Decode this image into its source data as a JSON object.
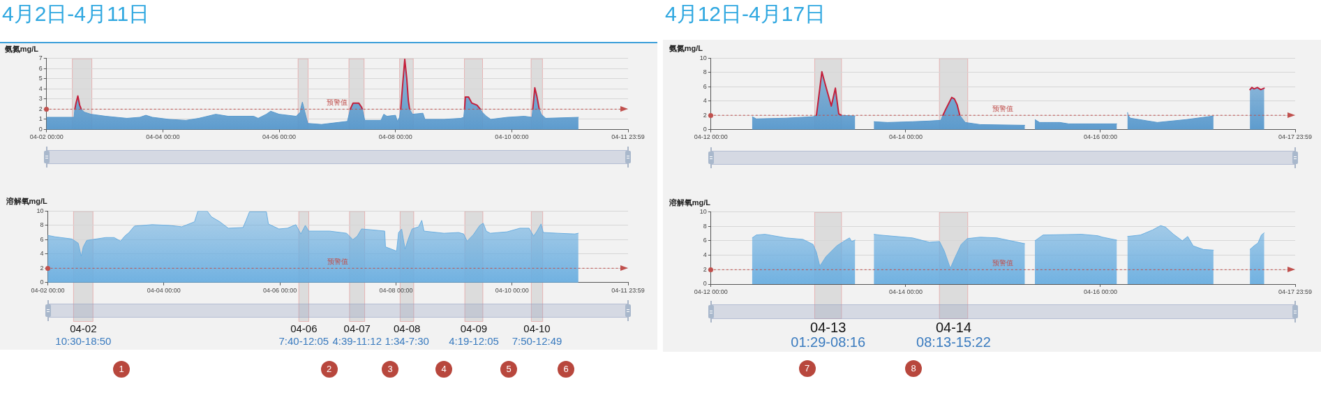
{
  "chart_data": [
    {
      "type": "area",
      "title": "4月2日-4月11日",
      "ylabel": "氨氮mg/L",
      "grid": "y",
      "marker": "none",
      "xlim": [
        "--04-02T00:00",
        "--04-11T23:59"
      ],
      "xticks": [
        {
          "value": "--04-02T00:00",
          "label": "04-02 00:00"
        },
        {
          "value": "--04-04T00:00",
          "label": "04-04 00:00"
        },
        {
          "value": "--04-06T00:00",
          "label": "04-06 00:00"
        },
        {
          "value": "--04-08T00:00",
          "label": "04-08 00:00"
        },
        {
          "value": "--04-10T00:00",
          "label": "04-10 00:00"
        },
        {
          "value": "--04-11T23:59",
          "label": "04-11 23:59"
        }
      ],
      "ylim": [
        0,
        7
      ],
      "yticks": [
        0,
        1,
        2,
        3,
        4,
        5,
        6,
        7
      ],
      "series": [
        {
          "color": "#5597cc",
          "x": [
            "--04-02T00:00",
            "--04-02T11:20",
            "--04-02T11:40",
            "--04-02T12:10",
            "--04-02T12:55",
            "--04-02T13:40",
            "--04-02T14:20",
            "--04-02T15:40",
            "--04-02T18:20",
            "--04-03T00:30",
            "--04-03T09:10",
            "--04-03T14:30",
            "--04-03T17:00",
            "--04-03T19:40",
            "--04-04T02:30",
            "--04-04T09:30",
            "--04-04T14:50",
            "--04-04T21:50",
            "--04-05T03:00",
            "--04-05T13:30",
            "--04-05T15:20",
            "--04-05T18:40",
            "--04-05T20:30",
            "--04-06T00:00",
            "--04-06T07:00",
            "--04-06T08:40",
            "--04-06T08:50",
            "--04-06T09:35",
            "--04-06T10:20",
            "--04-06T10:30",
            "--04-06T11:50",
            "--04-06T17:30",
            "--04-07T00:30",
            "--04-07T04:10",
            "--04-07T05:20",
            "--04-07T06:30",
            "--04-07T08:50",
            "--04-07T10:00",
            "--04-07T10:20",
            "--04-07T11:20",
            "--04-07T18:00",
            "--04-07T19:10",
            "--04-07T20:30",
            "--04-08T00:00",
            "--04-08T00:50",
            "--04-08T01:40",
            "--04-08T02:10",
            "--04-08T03:00",
            "--04-08T03:50",
            "--04-08T04:40",
            "--04-08T05:20",
            "--04-08T05:50",
            "--04-08T07:00",
            "--04-08T11:20",
            "--04-08T12:10",
            "--04-08T20:00",
            "--04-09T03:00",
            "--04-09T04:10",
            "--04-09T04:30",
            "--04-09T04:50",
            "--04-09T06:10",
            "--04-09T07:30",
            "--04-09T09:40",
            "--04-09T11:00",
            "--04-09T11:50",
            "--04-09T13:30",
            "--04-09T15:20",
            "--04-09T22:10",
            "--04-10T05:10",
            "--04-10T08:20",
            "--04-10T08:40",
            "--04-10T09:30",
            "--04-10T10:20",
            "--04-10T11:20",
            "--04-10T12:10",
            "--04-10T14:00",
            "--04-11T03:30"
          ],
          "values": [
            1.2,
            1.2,
            2.0,
            2.6,
            3.3,
            2.4,
            2.0,
            1.7,
            1.5,
            1.3,
            1.1,
            1.2,
            1.4,
            1.2,
            1.0,
            0.9,
            1.1,
            1.5,
            1.3,
            1.3,
            1.1,
            1.5,
            1.8,
            1.5,
            1.3,
            1.7,
            2.0,
            2.7,
            2.0,
            1.8,
            0.6,
            0.5,
            0.7,
            0.8,
            2.0,
            2.6,
            2.6,
            2.2,
            2.0,
            0.9,
            0.9,
            1.5,
            1.3,
            1.4,
            0.8,
            1.2,
            2.0,
            4.5,
            6.9,
            5.0,
            2.8,
            2.0,
            1.5,
            1.6,
            1.0,
            1.0,
            1.1,
            1.2,
            2.0,
            3.2,
            3.2,
            2.6,
            2.4,
            2.0,
            1.7,
            1.3,
            1.0,
            1.2,
            1.3,
            1.2,
            2.0,
            4.1,
            3.3,
            2.0,
            1.5,
            1.1,
            1.2
          ],
          "colors": [
            "#5597cc",
            "#5597cc",
            "#c41e3a",
            "#c41e3a",
            "#c41e3a",
            "#c41e3a",
            "#c41e3a",
            "#5597cc",
            "#5597cc",
            "#5597cc",
            "#5597cc",
            "#5597cc",
            "#5597cc",
            "#5597cc",
            "#5597cc",
            "#5597cc",
            "#5597cc",
            "#5597cc",
            "#5597cc",
            "#5597cc",
            "#5597cc",
            "#5597cc",
            "#5597cc",
            "#5597cc",
            "#5597cc",
            "#5597cc",
            "#5597cc",
            "#5597cc",
            "#5597cc",
            "#5597cc",
            "#5597cc",
            "#5597cc",
            "#5597cc",
            "#5597cc",
            "#c41e3a",
            "#c41e3a",
            "#c41e3a",
            "#c41e3a",
            "#c41e3a",
            "#5597cc",
            "#5597cc",
            "#5597cc",
            "#5597cc",
            "#5597cc",
            "#5597cc",
            "#5597cc",
            "#c41e3a",
            "#c41e3a",
            "#c41e3a",
            "#c41e3a",
            "#c41e3a",
            "#c41e3a",
            "#5597cc",
            "#5597cc",
            "#5597cc",
            "#5597cc",
            "#5597cc",
            "#5597cc",
            "#c41e3a",
            "#c41e3a",
            "#c41e3a",
            "#c41e3a",
            "#c41e3a",
            "#c41e3a",
            "#5597cc",
            "#5597cc",
            "#5597cc",
            "#5597cc",
            "#5597cc",
            "#5597cc",
            "#c41e3a",
            "#c41e3a",
            "#c41e3a",
            "#c41e3a",
            "#5597cc",
            "#5597cc",
            "#5597cc"
          ]
        }
      ],
      "ref_lines": [
        {
          "axis": "y",
          "value": 2,
          "label": "预警值",
          "color": "#c0504d",
          "line_style": "dashed"
        }
      ],
      "bands": [
        {
          "axis": "x",
          "from": "--04-02T10:30",
          "to": "--04-02T18:50",
          "color": "#dcdcdc"
        },
        {
          "axis": "x",
          "from": "--04-06T07:40",
          "to": "--04-06T12:05",
          "color": "#dcdcdc"
        },
        {
          "axis": "x",
          "from": "--04-07T04:39",
          "to": "--04-07T11:12",
          "color": "#dcdcdc"
        },
        {
          "axis": "x",
          "from": "--04-08T01:34",
          "to": "--04-08T07:30",
          "color": "#dcdcdc"
        },
        {
          "axis": "x",
          "from": "--04-09T04:19",
          "to": "--04-09T12:05",
          "color": "#dcdcdc"
        },
        {
          "axis": "x",
          "from": "--04-10T07:50",
          "to": "--04-10T12:49",
          "color": "#dcdcdc"
        }
      ]
    },
    {
      "type": "area",
      "ylabel": "溶解氧mg/L",
      "grid": "y",
      "marker": "none",
      "xlim": [
        "--04-02T00:00",
        "--04-11T23:59"
      ],
      "xticks": [
        {
          "value": "--04-02T00:00",
          "label": "04-02 00:00"
        },
        {
          "value": "--04-04T00:00",
          "label": "04-04 00:00"
        },
        {
          "value": "--04-06T00:00",
          "label": "04-06 00:00"
        },
        {
          "value": "--04-08T00:00",
          "label": "04-08 00:00"
        },
        {
          "value": "--04-10T00:00",
          "label": "04-10 00:00"
        },
        {
          "value": "--04-11T23:59",
          "label": "04-11 23:59"
        }
      ],
      "ylim": [
        0,
        10
      ],
      "yticks": [
        0,
        2,
        4,
        6,
        8,
        10
      ],
      "series": [
        {
          "color": "#6aaee0",
          "x": [
            "--04-02T00:00",
            "--04-02T03:00",
            "--04-02T10:00",
            "--04-02T12:35",
            "--04-02T13:50",
            "--04-02T14:40",
            "--04-02T16:05",
            "--04-03T00:00",
            "--04-03T03:25",
            "--04-03T06:05",
            "--04-03T07:50",
            "--04-03T09:35",
            "--04-03T11:50",
            "--04-03T19:10",
            "--04-04T02:10",
            "--04-04T07:25",
            "--04-04T12:40",
            "--04-04T14:05",
            "--04-04T17:55",
            "--04-04T19:40",
            "--04-04T23:10",
            "--04-05T02:40",
            "--04-05T08:45",
            "--04-05T10:00",
            "--04-05T11:25",
            "--04-05T18:25",
            "--04-05T19:15",
            "--04-05T23:35",
            "--04-06T03:05",
            "--04-06T06:35",
            "--04-06T08:40",
            "--04-06T10:30",
            "--04-06T11:55",
            "--04-06T20:35",
            "--04-07T03:35",
            "--04-07T06:10",
            "--04-07T08:00",
            "--04-07T09:45",
            "--04-07T13:15",
            "--04-07T19:20",
            "--04-07T19:40",
            "--04-08T00:15",
            "--04-08T01:05",
            "--04-08T02:20",
            "--04-08T03:45",
            "--04-08T05:00",
            "--04-08T06:40",
            "--04-08T09:20",
            "--04-08T10:40",
            "--04-08T11:35",
            "--04-08T19:50",
            "--04-09T01:55",
            "--04-09T04:00",
            "--04-09T05:25",
            "--04-09T08:00",
            "--04-09T10:40",
            "--04-09T12:05",
            "--04-09T13:20",
            "--04-09T15:00",
            "--04-09T22:00",
            "--04-10T03:15",
            "--04-10T07:05",
            "--04-10T08:55",
            "--04-10T10:20",
            "--04-10T12:00",
            "--04-10T12:55",
            "--04-10T19:00",
            "--04-11T02:00",
            "--04-11T03:25"
          ],
          "values": [
            6.6,
            6.4,
            6.1,
            5.5,
            3.7,
            5.0,
            5.9,
            6.3,
            6.3,
            5.8,
            6.5,
            7.0,
            7.9,
            8.1,
            8.0,
            7.8,
            8.5,
            10.0,
            10.0,
            9.2,
            8.5,
            7.6,
            7.7,
            8.7,
            9.9,
            9.9,
            8.2,
            7.5,
            7.6,
            8.1,
            6.8,
            8.0,
            7.2,
            7.2,
            6.9,
            6.0,
            6.5,
            7.5,
            7.4,
            7.2,
            5.0,
            4.4,
            7.0,
            7.5,
            4.7,
            6.0,
            7.5,
            7.8,
            8.7,
            7.2,
            6.9,
            7.0,
            6.8,
            5.8,
            6.7,
            8.0,
            8.3,
            7.2,
            6.9,
            7.1,
            7.6,
            7.6,
            6.5,
            7.2,
            8.2,
            7.0,
            6.9,
            6.8,
            6.9
          ]
        }
      ],
      "ref_lines": [
        {
          "axis": "y",
          "value": 2,
          "label": "预警值",
          "color": "#c0504d",
          "line_style": "dashed"
        }
      ],
      "bands": [
        {
          "axis": "x",
          "from": "--04-02T10:30",
          "to": "--04-02T18:50",
          "color": "#dcdcdc",
          "label": "04-02\n10:30-18:50"
        },
        {
          "axis": "x",
          "from": "--04-06T07:40",
          "to": "--04-06T12:05",
          "color": "#dcdcdc",
          "label": "04-06\n7:40-12:05"
        },
        {
          "axis": "x",
          "from": "--04-07T04:39",
          "to": "--04-07T11:12",
          "color": "#dcdcdc",
          "label": "04-07\n4:39-11:12"
        },
        {
          "axis": "x",
          "from": "--04-08T01:34",
          "to": "--04-08T07:30",
          "color": "#dcdcdc",
          "label": "04-08\n1:34-7:30"
        },
        {
          "axis": "x",
          "from": "--04-09T04:19",
          "to": "--04-09T12:05",
          "color": "#dcdcdc",
          "label": "04-09\n4:19-12:05"
        },
        {
          "axis": "x",
          "from": "--04-10T07:50",
          "to": "--04-10T12:49",
          "color": "#dcdcdc",
          "label": "04-10\n7:50-12:49"
        }
      ],
      "annotations": [
        "1",
        "2",
        "3",
        "4",
        "5",
        "6"
      ]
    },
    {
      "type": "area",
      "title": "4月12日-4月17日",
      "ylabel": "氨氮mg/L",
      "grid": "y",
      "marker": "none",
      "xlim": [
        "--04-12T00:00",
        "--04-17T23:59"
      ],
      "xticks": [
        {
          "value": "--04-12T00:00",
          "label": "04-12 00:00"
        },
        {
          "value": "--04-14T00:00",
          "label": "04-14 00:00"
        },
        {
          "value": "--04-16T00:00",
          "label": "04-16 00:00"
        },
        {
          "value": "--04-17T23:59",
          "label": "04-17 23:59"
        }
      ],
      "ylim": [
        0,
        10
      ],
      "yticks": [
        0,
        2,
        4,
        6,
        8,
        10
      ],
      "series": [
        {
          "color": "#5597cc",
          "x": [
            "--04-12T10:10",
            "--04-12T11:10",
            "--04-12T18:30",
            "--04-13T01:10",
            "--04-13T02:00",
            "--04-13T03:20",
            "--04-13T04:20",
            "--04-13T05:40",
            "--04-13T06:40",
            "--04-13T07:30",
            "--04-13T08:10",
            "--04-13T11:30",
            "--04-13T14:00",
            "--04-13T16:10",
            "--04-13T19:30",
            "--04-14T01:40",
            "--04-14T05:50",
            "--04-14T08:40",
            "--04-14T09:10",
            "--04-14T10:00",
            "--04-14T11:20",
            "--04-14T12:00",
            "--04-14T12:40",
            "--04-14T13:20",
            "--04-14T14:40",
            "--04-14T18:20",
            "--04-15T05:20",
            "--04-15T06:30",
            "--04-15T07:50",
            "--04-15T09:00",
            "--04-15T14:00",
            "--04-15T16:10",
            "--04-16T04:00",
            "--04-16T05:20",
            "--04-16T06:40",
            "--04-16T06:50",
            "--04-16T07:20",
            "--04-16T14:00",
            "--04-16T21:10",
            "--04-17T02:30",
            "--04-17T03:50",
            "--04-17T08:00",
            "--04-17T12:50",
            "--04-17T13:20",
            "--04-17T13:50",
            "--04-17T14:40",
            "--04-17T15:30",
            "--04-17T16:20"
          ],
          "values": [
            1.8,
            1.5,
            1.6,
            1.8,
            2.0,
            8.1,
            6.0,
            3.3,
            5.8,
            2.2,
            2.0,
            1.9,
            null,
            1.1,
            1.0,
            1.1,
            1.2,
            1.3,
            2.0,
            3.0,
            4.5,
            4.3,
            3.5,
            2.0,
            1.0,
            0.7,
            0.6,
            null,
            1.4,
            1.0,
            1.0,
            0.8,
            0.8,
            null,
            2.4,
            2.0,
            1.6,
            1.0,
            1.4,
            1.8,
            1.9,
            null,
            5.6,
            5.9,
            5.7,
            5.9,
            5.6,
            5.8
          ],
          "colors": [
            "#5597cc",
            "#5597cc",
            "#5597cc",
            "#5597cc",
            "#c41e3a",
            "#c41e3a",
            "#c41e3a",
            "#c41e3a",
            "#c41e3a",
            "#c41e3a",
            "#c41e3a",
            "#5597cc",
            null,
            "#5597cc",
            "#5597cc",
            "#5597cc",
            "#5597cc",
            "#5597cc",
            "#c41e3a",
            "#c41e3a",
            "#c41e3a",
            "#c41e3a",
            "#c41e3a",
            "#c41e3a",
            "#5597cc",
            "#5597cc",
            "#5597cc",
            null,
            "#5597cc",
            "#5597cc",
            "#5597cc",
            "#5597cc",
            "#5597cc",
            null,
            "#5597cc",
            "#5597cc",
            "#5597cc",
            "#5597cc",
            "#5597cc",
            "#5597cc",
            "#5597cc",
            null,
            "#c41e3a",
            "#c41e3a",
            "#c41e3a",
            "#c41e3a",
            "#c41e3a",
            "#c41e3a"
          ]
        }
      ],
      "ref_lines": [
        {
          "axis": "y",
          "value": 2,
          "label": "预警值",
          "color": "#c0504d",
          "line_style": "dashed"
        }
      ],
      "bands": [
        {
          "axis": "x",
          "from": "--04-13T01:29",
          "to": "--04-13T08:16",
          "color": "#dcdcdc"
        },
        {
          "axis": "x",
          "from": "--04-14T08:13",
          "to": "--04-14T15:22",
          "color": "#dcdcdc"
        }
      ]
    },
    {
      "type": "area",
      "ylabel": "溶解氧mg/L",
      "grid": "y",
      "marker": "none",
      "xlim": [
        "--04-12T00:00",
        "--04-17T23:59"
      ],
      "xticks": [
        {
          "value": "--04-12T00:00",
          "label": "04-12 00:00"
        },
        {
          "value": "--04-14T00:00",
          "label": "04-14 00:00"
        },
        {
          "value": "--04-16T00:00",
          "label": "04-16 00:00"
        },
        {
          "value": "--04-17T23:59",
          "label": "04-17 23:59"
        }
      ],
      "ylim": [
        0,
        10
      ],
      "yticks": [
        0,
        2,
        4,
        6,
        8,
        10
      ],
      "series": [
        {
          "color": "#6aaee0",
          "x": [
            "--04-12T10:10",
            "--04-12T11:10",
            "--04-12T13:20",
            "--04-12T18:30",
            "--04-12T22:40",
            "--04-13T01:10",
            "--04-13T02:00",
            "--04-13T02:50",
            "--04-13T04:20",
            "--04-13T07:00",
            "--04-13T09:30",
            "--04-13T10:10",
            "--04-13T10:40",
            "--04-13T11:30",
            "--04-13T14:00",
            "--04-13T16:10",
            "--04-13T17:30",
            "--04-14T01:40",
            "--04-14T05:50",
            "--04-14T08:20",
            "--04-14T09:30",
            "--04-14T10:30",
            "--04-14T11:00",
            "--04-14T12:00",
            "--04-14T13:40",
            "--04-14T15:10",
            "--04-14T18:20",
            "--04-14T22:30",
            "--04-15T05:20",
            "--04-15T06:30",
            "--04-15T07:50",
            "--04-15T09:50",
            "--04-15T19:20",
            "--04-15T23:20",
            "--04-16T00:30",
            "--04-16T04:00",
            "--04-16T05:20",
            "--04-16T06:40",
            "--04-16T09:50",
            "--04-16T12:50",
            "--04-16T14:50",
            "--04-16T16:00",
            "--04-16T18:00",
            "--04-16T20:10",
            "--04-16T21:30",
            "--04-16T22:50",
            "--04-17T01:20",
            "--04-17T03:50",
            "--04-17T08:00",
            "--04-17T12:50",
            "--04-17T13:50",
            "--04-17T14:50",
            "--04-17T15:40",
            "--04-17T16:20"
          ],
          "values": [
            6.4,
            6.8,
            6.9,
            6.4,
            6.2,
            5.5,
            4.4,
            2.5,
            3.8,
            5.3,
            6.2,
            6.4,
            5.9,
            6.1,
            null,
            6.9,
            6.8,
            6.4,
            5.8,
            5.9,
            4.6,
            3.0,
            2.2,
            3.5,
            5.5,
            6.3,
            6.5,
            6.4,
            5.6,
            null,
            6.0,
            6.8,
            6.9,
            6.7,
            6.5,
            6.1,
            null,
            6.6,
            6.8,
            7.5,
            8.1,
            7.9,
            6.9,
            6.0,
            6.6,
            5.3,
            4.8,
            4.7,
            null,
            4.8,
            5.3,
            5.7,
            6.8,
            7.1
          ]
        }
      ],
      "ref_lines": [
        {
          "axis": "y",
          "value": 2,
          "label": "预警值",
          "color": "#c0504d",
          "line_style": "dashed"
        }
      ],
      "bands": [
        {
          "axis": "x",
          "from": "--04-13T01:29",
          "to": "--04-13T08:16",
          "color": "#dcdcdc",
          "label": "04-13\n01:29-08:16"
        },
        {
          "axis": "x",
          "from": "--04-14T08:13",
          "to": "--04-14T15:22",
          "color": "#dcdcdc",
          "label": "04-14\n08:13-15:22"
        }
      ],
      "annotations": [
        "7",
        "8"
      ]
    }
  ]
}
